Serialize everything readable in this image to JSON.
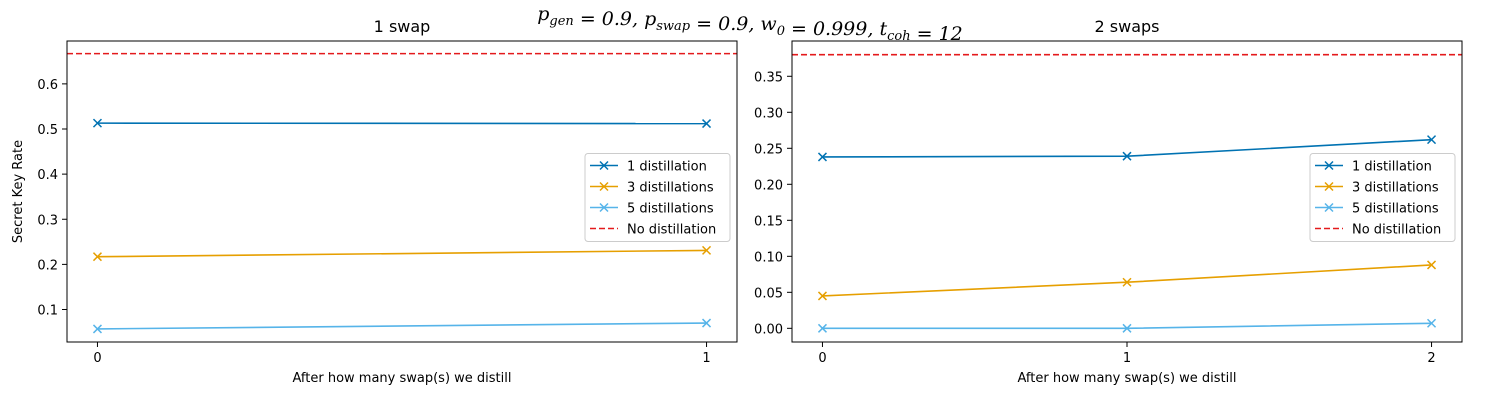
{
  "figure": {
    "suptitle_parts": [
      {
        "t": "p",
        "sub": "gen"
      },
      {
        "t": " = 0.9, "
      },
      {
        "t": "p",
        "sub": "swap"
      },
      {
        "t": " = 0.9, "
      },
      {
        "t": "w",
        "sub": "0"
      },
      {
        "t": " = 0.999, "
      },
      {
        "t": "t",
        "sub": "coh"
      },
      {
        "t": " = 12"
      }
    ]
  },
  "chart_data": [
    {
      "type": "line",
      "title": "1 swap",
      "xlabel": "After how many swap(s) we distill",
      "ylabel": "Secret Key Rate",
      "x": [
        0,
        1
      ],
      "xlim": [
        -0.05,
        1.05
      ],
      "xticks": [
        0,
        1
      ],
      "ylim": [
        0.028,
        0.695
      ],
      "yticks": [
        0.1,
        0.2,
        0.3,
        0.4,
        0.5,
        0.6
      ],
      "ytick_labels": [
        "0.1",
        "0.2",
        "0.3",
        "0.4",
        "0.5",
        "0.6"
      ],
      "legend_position": "center-right",
      "series": [
        {
          "name": "1 distillation",
          "values": [
            0.513,
            0.512
          ],
          "color": "#0072B2",
          "marker": "x",
          "style": "solid"
        },
        {
          "name": "3 distillations",
          "values": [
            0.217,
            0.231
          ],
          "color": "#E69F00",
          "marker": "x",
          "style": "solid"
        },
        {
          "name": "5 distillations",
          "values": [
            0.057,
            0.07
          ],
          "color": "#56B4E9",
          "marker": "x",
          "style": "solid"
        },
        {
          "name": "No distillation",
          "hline": 0.667,
          "color": "#e41a1c",
          "style": "dashed"
        }
      ]
    },
    {
      "type": "line",
      "title": "2 swaps",
      "xlabel": "After how many swap(s) we distill",
      "ylabel": "",
      "x": [
        0,
        1,
        2
      ],
      "xlim": [
        -0.1,
        2.1
      ],
      "xticks": [
        0,
        1,
        2
      ],
      "ylim": [
        -0.019,
        0.399
      ],
      "yticks": [
        0.0,
        0.05,
        0.1,
        0.15,
        0.2,
        0.25,
        0.3,
        0.35
      ],
      "ytick_labels": [
        "0.00",
        "0.05",
        "0.10",
        "0.15",
        "0.20",
        "0.25",
        "0.30",
        "0.35"
      ],
      "legend_position": "center-right",
      "series": [
        {
          "name": "1 distillation",
          "values": [
            0.238,
            0.239,
            0.262
          ],
          "color": "#0072B2",
          "marker": "x",
          "style": "solid"
        },
        {
          "name": "3 distillations",
          "values": [
            0.045,
            0.064,
            0.088
          ],
          "color": "#E69F00",
          "marker": "x",
          "style": "solid"
        },
        {
          "name": "5 distillations",
          "values": [
            0.0,
            0.0,
            0.007
          ],
          "color": "#56B4E9",
          "marker": "x",
          "style": "solid"
        },
        {
          "name": "No distillation",
          "hline": 0.38,
          "color": "#e41a1c",
          "style": "dashed"
        }
      ]
    }
  ]
}
